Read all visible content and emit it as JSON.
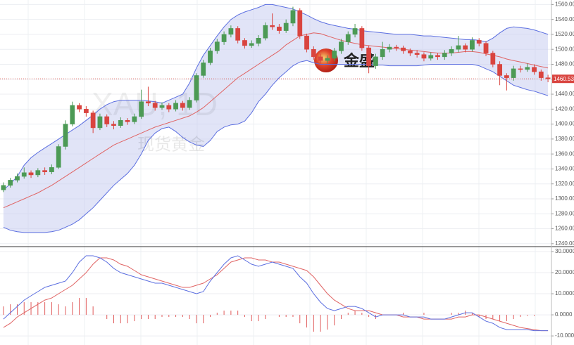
{
  "chart_data": [
    {
      "type": "candlestick",
      "title": "XAU, 1D",
      "subtitle": "现货黄金",
      "annotation": "金盛",
      "open": [
        1312,
        1318,
        1325,
        1330,
        1335,
        1332,
        1338,
        1336,
        1342,
        1370,
        1400,
        1425,
        1420,
        1415,
        1395,
        1410,
        1400,
        1398,
        1405,
        1403,
        1410,
        1430,
        1428,
        1422,
        1425,
        1420,
        1428,
        1422,
        1432,
        1465,
        1482,
        1498,
        1510,
        1520,
        1528,
        1512,
        1505,
        1508,
        1515,
        1532,
        1530,
        1525,
        1535,
        1552,
        1518,
        1500,
        1490,
        1485,
        1488,
        1498,
        1510,
        1520,
        1528,
        1502,
        1478,
        1490,
        1500,
        1503,
        1502,
        1498,
        1495,
        1493,
        1488,
        1492,
        1490,
        1495,
        1500,
        1505,
        1500,
        1512,
        1508,
        1495,
        1480,
        1465,
        1462,
        1474,
        1473,
        1476,
        1470,
        1462
      ],
      "high": [
        1322,
        1328,
        1334,
        1342,
        1338,
        1341,
        1342,
        1346,
        1373,
        1405,
        1430,
        1428,
        1424,
        1418,
        1414,
        1413,
        1404,
        1409,
        1408,
        1414,
        1446,
        1450,
        1431,
        1429,
        1428,
        1432,
        1431,
        1436,
        1468,
        1486,
        1502,
        1514,
        1524,
        1532,
        1531,
        1515,
        1512,
        1519,
        1536,
        1548,
        1534,
        1540,
        1557,
        1555,
        1521,
        1504,
        1494,
        1492,
        1502,
        1514,
        1524,
        1534,
        1531,
        1505,
        1494,
        1510,
        1507,
        1506,
        1505,
        1501,
        1499,
        1496,
        1496,
        1495,
        1499,
        1504,
        1518,
        1508,
        1516,
        1515,
        1511,
        1498,
        1484,
        1468,
        1478,
        1478,
        1481,
        1480,
        1473,
        1466
      ],
      "low": [
        1309,
        1315,
        1322,
        1327,
        1328,
        1329,
        1332,
        1333,
        1340,
        1366,
        1397,
        1416,
        1410,
        1388,
        1392,
        1396,
        1393,
        1395,
        1399,
        1400,
        1407,
        1424,
        1418,
        1419,
        1416,
        1417,
        1418,
        1419,
        1429,
        1462,
        1479,
        1494,
        1506,
        1516,
        1508,
        1501,
        1502,
        1504,
        1512,
        1526,
        1521,
        1522,
        1531,
        1514,
        1496,
        1486,
        1481,
        1481,
        1484,
        1494,
        1506,
        1516,
        1498,
        1468,
        1474,
        1486,
        1496,
        1498,
        1494,
        1491,
        1489,
        1484,
        1485,
        1486,
        1486,
        1491,
        1496,
        1496,
        1497,
        1504,
        1491,
        1476,
        1452,
        1445,
        1458,
        1469,
        1470,
        1466,
        1458,
        1456
      ],
      "close": [
        1318,
        1325,
        1330,
        1335,
        1332,
        1338,
        1336,
        1342,
        1370,
        1400,
        1425,
        1420,
        1415,
        1395,
        1410,
        1400,
        1398,
        1405,
        1403,
        1410,
        1430,
        1428,
        1422,
        1425,
        1420,
        1428,
        1422,
        1432,
        1465,
        1482,
        1498,
        1510,
        1520,
        1528,
        1512,
        1505,
        1508,
        1515,
        1532,
        1530,
        1525,
        1535,
        1552,
        1518,
        1500,
        1490,
        1485,
        1488,
        1498,
        1510,
        1520,
        1528,
        1502,
        1478,
        1490,
        1500,
        1503,
        1502,
        1498,
        1495,
        1493,
        1488,
        1492,
        1490,
        1495,
        1500,
        1505,
        1500,
        1512,
        1508,
        1495,
        1480,
        1465,
        1462,
        1474,
        1473,
        1476,
        1470,
        1462,
        1460.53
      ],
      "up_color": "#4c9a55",
      "down_color": "#d9443f",
      "bb_upper": [
        1312,
        1320,
        1330,
        1345,
        1355,
        1362,
        1368,
        1374,
        1380,
        1386,
        1392,
        1398,
        1405,
        1412,
        1420,
        1426,
        1430,
        1432,
        1432,
        1432,
        1432,
        1431,
        1430,
        1428,
        1432,
        1436,
        1440,
        1455,
        1475,
        1492,
        1505,
        1518,
        1530,
        1540,
        1546,
        1550,
        1553,
        1556,
        1560,
        1560,
        1558,
        1556,
        1554,
        1550,
        1546,
        1541,
        1537,
        1534,
        1532,
        1530,
        1528,
        1527,
        1525,
        1524,
        1523,
        1522,
        1521,
        1520,
        1520,
        1520,
        1519,
        1518,
        1518,
        1517,
        1516,
        1515,
        1514,
        1513,
        1513,
        1512,
        1510,
        1515,
        1522,
        1528,
        1530,
        1529,
        1528,
        1526,
        1523,
        1520
      ],
      "bb_middle": [
        1288,
        1292,
        1296,
        1300,
        1304,
        1308,
        1313,
        1318,
        1324,
        1330,
        1336,
        1342,
        1348,
        1354,
        1360,
        1366,
        1372,
        1376,
        1380,
        1384,
        1388,
        1392,
        1396,
        1399,
        1402,
        1405,
        1408,
        1411,
        1416,
        1422,
        1430,
        1438,
        1446,
        1454,
        1462,
        1468,
        1474,
        1480,
        1486,
        1492,
        1498,
        1506,
        1512,
        1518,
        1520,
        1522,
        1521,
        1518,
        1515,
        1512,
        1510,
        1508,
        1506,
        1505,
        1504,
        1503,
        1502,
        1501,
        1500,
        1499,
        1498,
        1497,
        1496,
        1495,
        1495,
        1495,
        1496,
        1497,
        1497,
        1496,
        1494,
        1492,
        1490,
        1487,
        1485,
        1483,
        1481,
        1479,
        1477,
        1475
      ],
      "bb_lower": [
        1262,
        1258,
        1256,
        1255,
        1255,
        1255,
        1255,
        1256,
        1258,
        1262,
        1266,
        1272,
        1280,
        1288,
        1298,
        1308,
        1318,
        1326,
        1334,
        1345,
        1360,
        1378,
        1388,
        1394,
        1396,
        1390,
        1382,
        1376,
        1372,
        1370,
        1378,
        1390,
        1396,
        1399,
        1400,
        1404,
        1415,
        1430,
        1440,
        1452,
        1462,
        1470,
        1478,
        1483,
        1485,
        1482,
        1480,
        1480,
        1480,
        1480,
        1480,
        1480,
        1480,
        1480,
        1479,
        1479,
        1478,
        1478,
        1478,
        1478,
        1478,
        1479,
        1480,
        1480,
        1480,
        1480,
        1480,
        1480,
        1480,
        1478,
        1474,
        1470,
        1464,
        1458,
        1452,
        1449,
        1446,
        1444,
        1441,
        1438
      ],
      "band_color": "#5b6ee0",
      "band_fill": "#c9cdf0",
      "middle_color": "#e06464",
      "ylim": [
        1237,
        1566
      ],
      "yticks": [
        {
          "value": 1240,
          "label": "1240.00"
        },
        {
          "value": 1260,
          "label": "1260.00"
        },
        {
          "value": 1280,
          "label": "1280.00"
        },
        {
          "value": 1300,
          "label": "1300.00"
        },
        {
          "value": 1320,
          "label": "1320.00"
        },
        {
          "value": 1340,
          "label": "1340.00"
        },
        {
          "value": 1360,
          "label": "1360.00"
        },
        {
          "value": 1380,
          "label": "1380.00"
        },
        {
          "value": 1400,
          "label": "1400.00"
        },
        {
          "value": 1420,
          "label": "1420.00"
        },
        {
          "value": 1440,
          "label": "1440.00"
        },
        {
          "value": 1460,
          "label": "1460.00"
        },
        {
          "value": 1480,
          "label": "1480.00"
        },
        {
          "value": 1500,
          "label": "1500.00"
        },
        {
          "value": 1520,
          "label": "1520.00"
        },
        {
          "value": 1540,
          "label": "1540.00"
        },
        {
          "value": 1560,
          "label": "1560.00"
        }
      ],
      "grid": true
    },
    {
      "type": "macd",
      "macd": [
        -2,
        1,
        4,
        7,
        9,
        11,
        13,
        14,
        15,
        16,
        20,
        25,
        28,
        28,
        27,
        25,
        22,
        20,
        19,
        18,
        17,
        16,
        15,
        15,
        14,
        13,
        12,
        11,
        10,
        11,
        16,
        20,
        24,
        27,
        28,
        26,
        24,
        23,
        24,
        25,
        24,
        23,
        22,
        18,
        15,
        10,
        6,
        3,
        2,
        3,
        4,
        4,
        3,
        1,
        -1,
        0,
        0,
        0,
        0,
        -1,
        -1,
        -1,
        -2,
        -2,
        -2,
        -1,
        0,
        1,
        1,
        -1,
        -3,
        -4,
        -6,
        -7,
        -7,
        -7,
        -7,
        -7.5,
        -7.5,
        -7.5
      ],
      "signal": [
        -6,
        -4,
        -1,
        1,
        3,
        5,
        7,
        8,
        10,
        12,
        14,
        17,
        20,
        24,
        27,
        27,
        26,
        24,
        23,
        21,
        19,
        18,
        17,
        16,
        15,
        14,
        13,
        13,
        14,
        15,
        17,
        19,
        22,
        25,
        26,
        27,
        27,
        26,
        26,
        25,
        25,
        24,
        23,
        22,
        21,
        18,
        14,
        10,
        7,
        5,
        3,
        2,
        2,
        2,
        1,
        0,
        0,
        0,
        -1,
        -1,
        -1,
        -2,
        -2,
        -2,
        -2,
        -2,
        -1,
        -1,
        0,
        0,
        -1,
        -2,
        -3,
        -4,
        -5,
        -6,
        -6.5,
        -7,
        -7.5,
        -7.5
      ],
      "histogram": [
        4,
        5,
        5,
        6,
        6,
        6,
        6,
        6,
        5,
        4,
        6,
        8,
        8,
        4,
        0,
        -2,
        -4,
        -4,
        -4,
        -3,
        -2,
        -2,
        -2,
        -1,
        -1,
        -1,
        -1,
        -2,
        -4,
        -4,
        -1,
        1,
        2,
        2,
        2,
        -1,
        -3,
        -3,
        -2,
        0,
        -1,
        -1,
        -1,
        -4,
        -6,
        -8,
        -8,
        -7,
        -5,
        -2,
        1,
        2,
        1,
        -1,
        -2,
        0,
        0,
        0,
        1,
        0,
        0,
        1,
        0,
        0,
        0,
        1,
        1,
        2,
        1,
        -1,
        -2,
        -2,
        -3,
        -3,
        -2,
        -1,
        -0.5,
        -0.5,
        0,
        0
      ],
      "macd_color": "#5b6ee0",
      "signal_color": "#e06464",
      "histogram_color": "#e05a5a",
      "ylim": [
        -14.3,
        32
      ],
      "yticks": [
        {
          "value": -10,
          "label": "-10.0000"
        },
        {
          "value": 0,
          "label": "0.0000"
        },
        {
          "value": 10,
          "label": "10.0000"
        },
        {
          "value": 20,
          "label": "20.0000"
        },
        {
          "value": 30,
          "label": "30.0000"
        }
      ],
      "grid": true
    }
  ]
}
